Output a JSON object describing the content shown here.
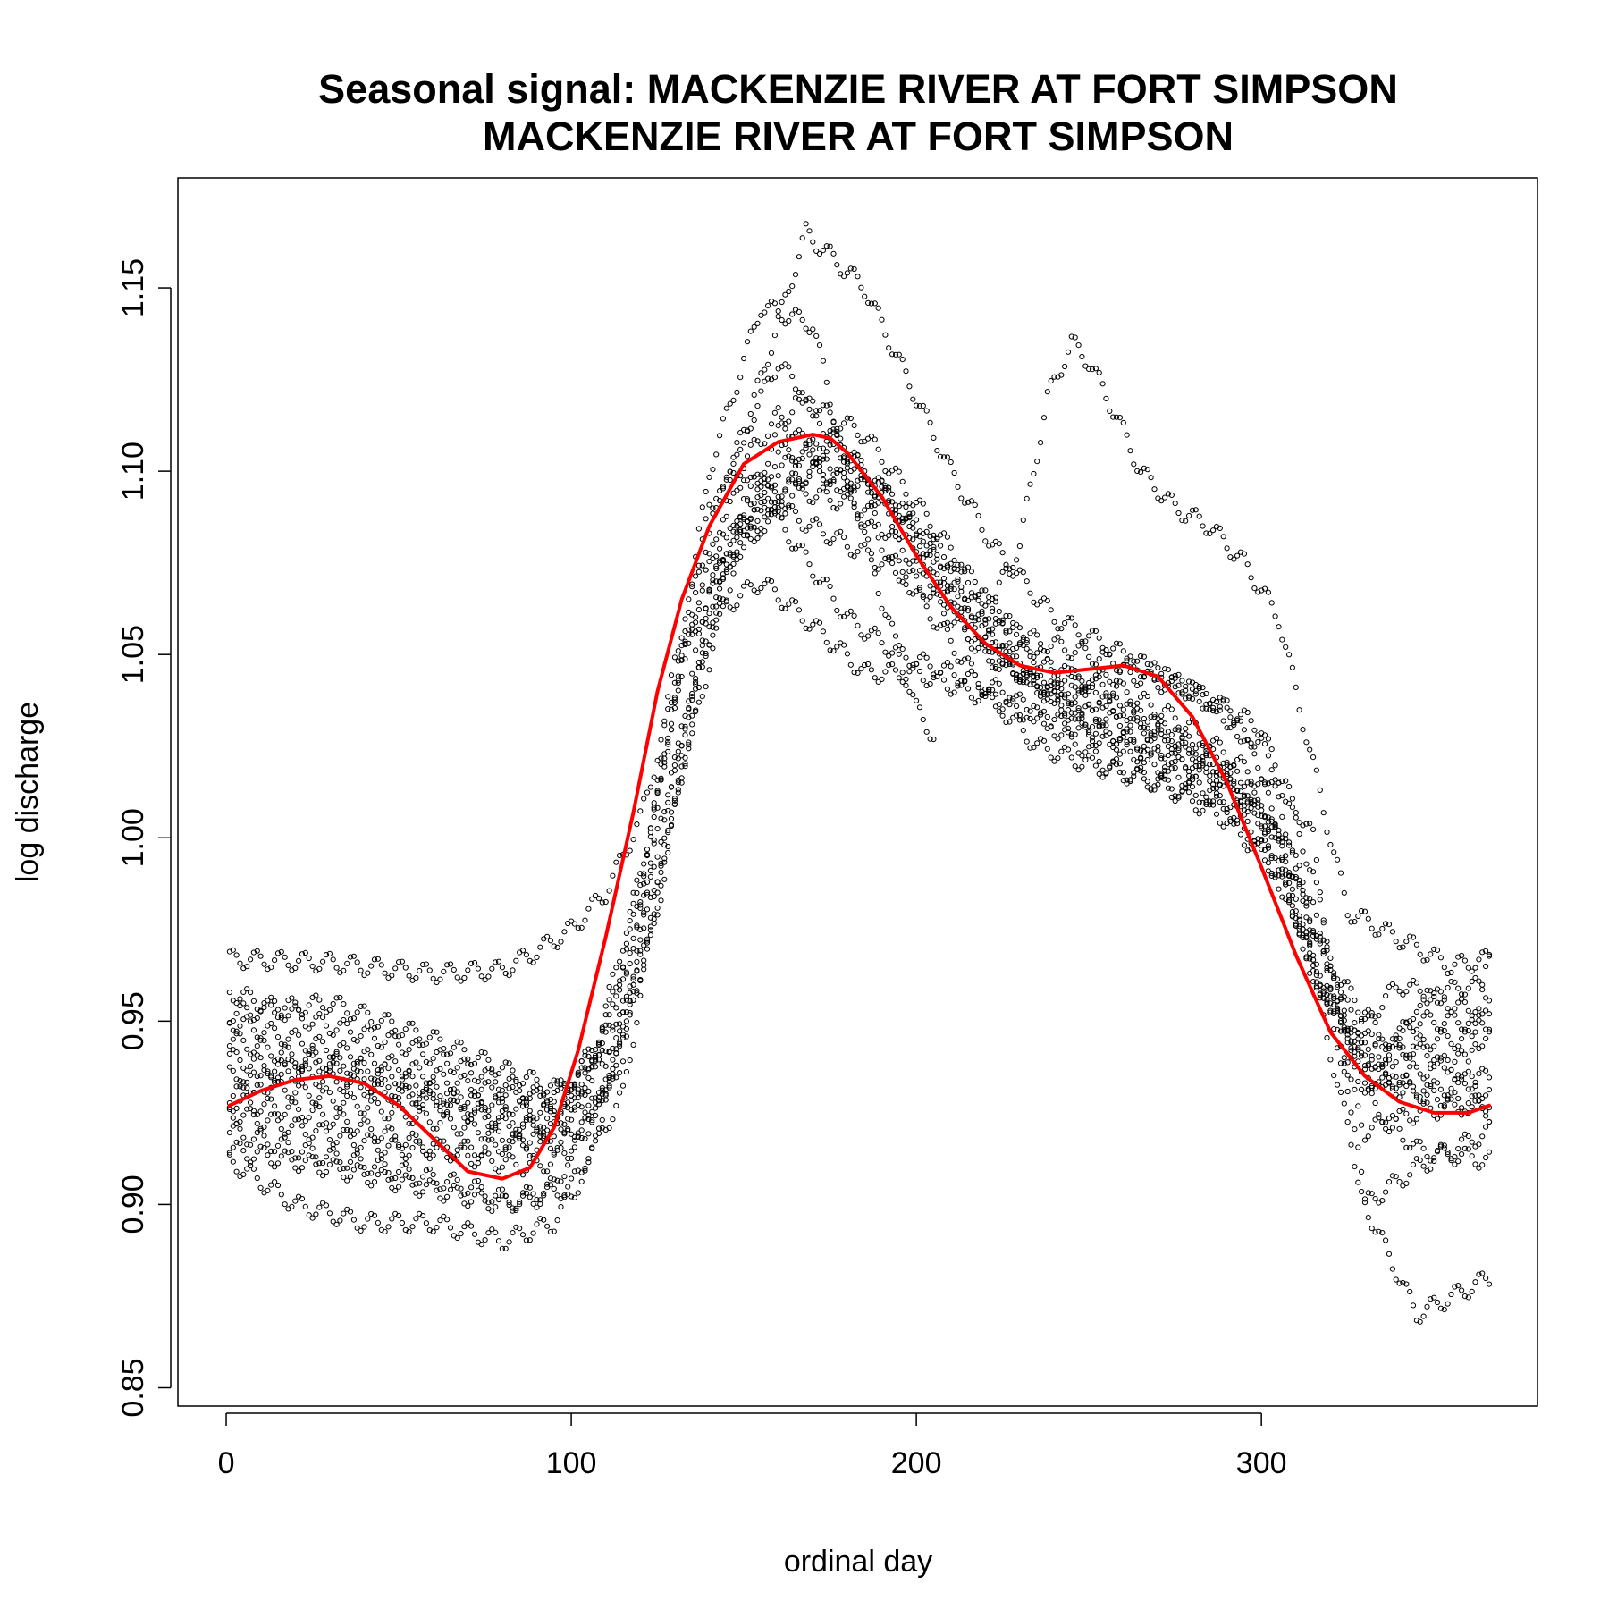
{
  "chart_data": {
    "type": "scatter",
    "title_lines": [
      "Seasonal signal: MACKENZIE RIVER AT FORT SIMPSON",
      "MACKENZIE RIVER AT FORT SIMPSON"
    ],
    "xlabel": "ordinal day",
    "ylabel": "log discharge",
    "xlim": [
      -14,
      380
    ],
    "ylim": [
      0.845,
      1.18
    ],
    "x_ticks": [
      0,
      100,
      200,
      300
    ],
    "x_tick_labels": [
      "0",
      "100",
      "200",
      "300"
    ],
    "y_ticks": [
      0.85,
      0.9,
      0.95,
      1.0,
      1.05,
      1.1,
      1.15
    ],
    "y_tick_labels": [
      "0.85",
      "0.90",
      "0.95",
      "1.00",
      "1.05",
      "1.10",
      "1.15"
    ],
    "grid": false,
    "legend": "none",
    "observation_profiles": [
      {
        "x": [
          1,
          30,
          60,
          80,
          90,
          100,
          110,
          120,
          130,
          145,
          160,
          175,
          190,
          200,
          215,
          230,
          245,
          260,
          280,
          300,
          315,
          325,
          340,
          360,
          366
        ],
        "y": [
          0.967,
          0.966,
          0.963,
          0.964,
          0.969,
          0.975,
          0.985,
          1.005,
          1.04,
          1.08,
          1.1,
          1.11,
          1.095,
          1.08,
          1.06,
          1.045,
          1.035,
          1.025,
          1.015,
          1.0,
          0.965,
          0.945,
          0.935,
          0.94,
          0.967
        ]
      },
      {
        "x": [
          1,
          25,
          50,
          75,
          90,
          100,
          110,
          125,
          145,
          165,
          185,
          205,
          220,
          235,
          250,
          270,
          290,
          305,
          315,
          325,
          335,
          345,
          360,
          366
        ],
        "y": [
          0.958,
          0.95,
          0.944,
          0.935,
          0.93,
          0.932,
          0.95,
          1.0,
          1.08,
          1.12,
          1.11,
          1.085,
          1.065,
          1.05,
          1.04,
          1.03,
          1.02,
          1.0,
          0.965,
          0.94,
          0.93,
          0.955,
          0.96,
          0.958
        ]
      },
      {
        "x": [
          1,
          20,
          45,
          70,
          85,
          100,
          115,
          130,
          150,
          170,
          190,
          210,
          230,
          250,
          270,
          290,
          305,
          320,
          335,
          350,
          366
        ],
        "y": [
          0.945,
          0.94,
          0.932,
          0.925,
          0.92,
          0.925,
          0.95,
          1.02,
          1.09,
          1.1,
          1.095,
          1.075,
          1.055,
          1.05,
          1.045,
          1.035,
          1.01,
          0.96,
          0.94,
          0.945,
          0.945
        ]
      },
      {
        "x": [
          1,
          25,
          50,
          75,
          90,
          100,
          112,
          125,
          140,
          160,
          180,
          200,
          220,
          240,
          260,
          280,
          300,
          315,
          330,
          345,
          366
        ],
        "y": [
          0.935,
          0.93,
          0.925,
          0.92,
          0.915,
          0.918,
          0.935,
          0.985,
          1.065,
          1.105,
          1.105,
          1.085,
          1.06,
          1.045,
          1.04,
          1.03,
          1.015,
          0.98,
          0.935,
          0.93,
          0.935
        ]
      },
      {
        "x": [
          1,
          25,
          50,
          75,
          90,
          100,
          115,
          128,
          145,
          165,
          185,
          205,
          225,
          245,
          265,
          285,
          300,
          315,
          330,
          345,
          366
        ],
        "y": [
          0.928,
          0.925,
          0.918,
          0.912,
          0.91,
          0.915,
          0.94,
          1.0,
          1.075,
          1.095,
          1.09,
          1.07,
          1.05,
          1.035,
          1.03,
          1.02,
          1.005,
          0.965,
          0.92,
          0.925,
          0.928
        ]
      },
      {
        "x": [
          1,
          20,
          45,
          70,
          85,
          100,
          115,
          130,
          150,
          170,
          190,
          210,
          230,
          250,
          270,
          290,
          305,
          318,
          330,
          345,
          366
        ],
        "y": [
          0.92,
          0.915,
          0.91,
          0.905,
          0.9,
          0.905,
          0.93,
          1.01,
          1.085,
          1.1,
          1.095,
          1.07,
          1.045,
          1.03,
          1.025,
          1.015,
          1.0,
          0.95,
          0.9,
          0.91,
          0.92
        ]
      },
      {
        "x": [
          1,
          20,
          40,
          60,
          80,
          95,
          105,
          118,
          130,
          150,
          168,
          185,
          200,
          210,
          222,
          240,
          260,
          280,
          300,
          315,
          330,
          345,
          366
        ],
        "y": [
          0.912,
          0.9,
          0.895,
          0.895,
          0.89,
          0.895,
          0.91,
          0.96,
          1.04,
          1.11,
          1.165,
          1.15,
          1.12,
          1.1,
          1.08,
          1.06,
          1.05,
          1.04,
          1.025,
          1.0,
          0.9,
          0.87,
          0.88
        ]
      },
      {
        "x": [
          1,
          30,
          60,
          85,
          100,
          115,
          130,
          140,
          155,
          170,
          180,
          190,
          200,
          205
        ],
        "y": [
          0.952,
          0.955,
          0.945,
          0.935,
          0.93,
          0.955,
          1.04,
          1.1,
          1.145,
          1.14,
          1.1,
          1.065,
          1.035,
          1.028
        ]
      },
      {
        "x": [
          1,
          25,
          50,
          75,
          95,
          110,
          120,
          130,
          145,
          160,
          175,
          190,
          205,
          220,
          240,
          260,
          280,
          300,
          315,
          325,
          340,
          355,
          366
        ],
        "y": [
          0.94,
          0.935,
          0.93,
          0.928,
          0.925,
          0.94,
          0.98,
          1.05,
          1.1,
          1.13,
          1.11,
          1.09,
          1.07,
          1.05,
          1.04,
          1.045,
          1.04,
          1.03,
          0.99,
          0.945,
          0.96,
          0.955,
          0.95
        ]
      },
      {
        "x": [
          1,
          25,
          50,
          75,
          95,
          105,
          120,
          135,
          150,
          165,
          180,
          195,
          210,
          225,
          240,
          255,
          270,
          290,
          305,
          320,
          335,
          350,
          366
        ],
        "y": [
          0.925,
          0.92,
          0.915,
          0.915,
          0.92,
          0.935,
          0.99,
          1.06,
          1.1,
          1.08,
          1.06,
          1.05,
          1.045,
          1.04,
          1.03,
          1.02,
          1.015,
          1.01,
          0.99,
          0.955,
          0.935,
          0.93,
          0.925
        ]
      },
      {
        "x": [
          1,
          25,
          50,
          75,
          95,
          110,
          125,
          140,
          155,
          170,
          185,
          200,
          215,
          230,
          245,
          260,
          275,
          290,
          305,
          320,
          335,
          350,
          366
        ],
        "y": [
          0.93,
          0.94,
          0.935,
          0.925,
          0.92,
          0.93,
          0.98,
          1.06,
          1.07,
          1.058,
          1.045,
          1.045,
          1.04,
          1.035,
          1.03,
          1.025,
          1.02,
          1.015,
          1.0,
          0.965,
          0.945,
          0.94,
          0.93
        ]
      },
      {
        "x": [
          220,
          230,
          238,
          245,
          250,
          258,
          265,
          275,
          285,
          295,
          305,
          315,
          325,
          335,
          345,
          355,
          366
        ],
        "y": [
          1.06,
          1.08,
          1.12,
          1.135,
          1.13,
          1.115,
          1.1,
          1.09,
          1.085,
          1.075,
          1.06,
          1.02,
          0.98,
          0.975,
          0.97,
          0.965,
          0.967
        ]
      },
      {
        "x": [
          1,
          20,
          40,
          60,
          80,
          95,
          110,
          125,
          140,
          160,
          175,
          190,
          205,
          220,
          235,
          250,
          270,
          290,
          305,
          318,
          330,
          345,
          366
        ],
        "y": [
          0.95,
          0.945,
          0.94,
          0.935,
          0.93,
          0.928,
          0.945,
          1.01,
          1.09,
          1.115,
          1.1,
          1.08,
          1.06,
          1.04,
          1.025,
          1.02,
          1.015,
          1.005,
          0.99,
          0.96,
          0.94,
          0.95,
          0.95
        ]
      },
      {
        "x": [
          1,
          30,
          55,
          80,
          95,
          110,
          125,
          140,
          160,
          180,
          200,
          220,
          240,
          260,
          280,
          300,
          315,
          330,
          345,
          366
        ],
        "y": [
          0.915,
          0.91,
          0.905,
          0.9,
          0.905,
          0.93,
          0.99,
          1.07,
          1.09,
          1.08,
          1.07,
          1.05,
          1.04,
          1.035,
          1.025,
          1.01,
          0.975,
          0.93,
          0.915,
          0.912
        ]
      }
    ],
    "seasonal_fit": {
      "name": "",
      "color": "#ff0000",
      "x": [
        1,
        10,
        20,
        30,
        40,
        50,
        60,
        70,
        80,
        88,
        95,
        102,
        110,
        118,
        125,
        132,
        140,
        150,
        160,
        170,
        175,
        180,
        190,
        200,
        210,
        220,
        230,
        240,
        250,
        260,
        270,
        280,
        290,
        300,
        310,
        320,
        330,
        340,
        350,
        360,
        366
      ],
      "y": [
        0.927,
        0.931,
        0.934,
        0.935,
        0.933,
        0.927,
        0.918,
        0.909,
        0.907,
        0.91,
        0.921,
        0.942,
        0.973,
        1.007,
        1.04,
        1.065,
        1.085,
        1.102,
        1.108,
        1.11,
        1.109,
        1.105,
        1.093,
        1.077,
        1.063,
        1.053,
        1.047,
        1.045,
        1.046,
        1.047,
        1.044,
        1.033,
        1.015,
        0.992,
        0.968,
        0.947,
        0.935,
        0.928,
        0.925,
        0.925,
        0.927
      ]
    }
  }
}
